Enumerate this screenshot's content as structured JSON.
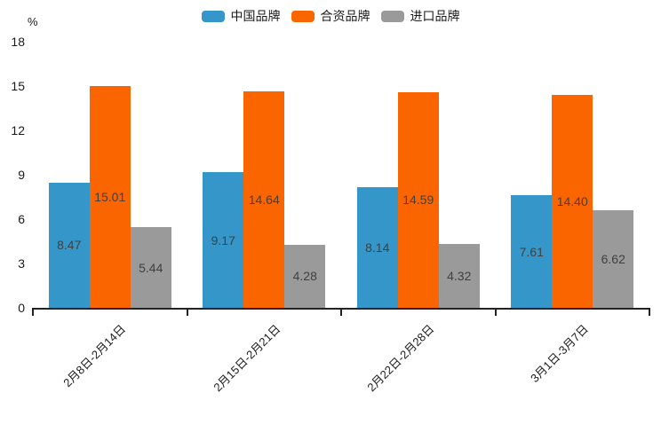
{
  "chart_data": {
    "type": "bar",
    "title": "",
    "xlabel": "",
    "ylabel": "%",
    "ylim": [
      0,
      18
    ],
    "yticks": [
      0,
      3,
      6,
      9,
      12,
      15,
      18
    ],
    "grid": false,
    "legend_position": "top",
    "value_labels": true,
    "categories": [
      "2月8日-2月14日",
      "2月15日-2月21日",
      "2月22日-2月28日",
      "3月1日-3月7日"
    ],
    "series": [
      {
        "name": "中国品牌",
        "color": "#3596C9",
        "values": [
          8.47,
          9.17,
          8.14,
          7.61
        ]
      },
      {
        "name": "合资品牌",
        "color": "#FB6500",
        "values": [
          15.01,
          14.64,
          14.59,
          14.4
        ]
      },
      {
        "name": "进口品牌",
        "color": "#9A9A9A",
        "values": [
          5.44,
          4.28,
          4.32,
          6.62
        ]
      }
    ],
    "axis_color": "#222222",
    "value_label_color": "#404040",
    "tick_label_color": "#1a1a1a"
  }
}
